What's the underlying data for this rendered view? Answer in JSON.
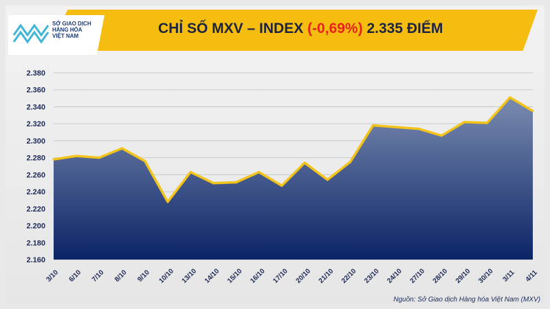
{
  "header": {
    "logo_text": [
      "SỞ GIAO DỊCH",
      "HÀNG HÓA",
      "VIỆT NAM"
    ],
    "title_main": "CHỈ SỐ MXV – INDEX",
    "title_change": "(-0,69%)",
    "title_value": "2.335 ĐIỂM"
  },
  "source": "Nguồn: Sở Giao dịch Hàng hóa Việt Nam (MXV)",
  "colors": {
    "banner": "#f5bd0f",
    "line": "#f2c318",
    "fill_top": "#7b8cb0",
    "fill_bottom": "#0b2466",
    "change": "#e8231c"
  },
  "chart_data": {
    "type": "area",
    "categories": [
      "3/10",
      "6/10",
      "7/10",
      "8/10",
      "9/10",
      "10/10",
      "13/10",
      "14/10",
      "15/10",
      "16/10",
      "17/10",
      "20/10",
      "21/10",
      "22/10",
      "23/10",
      "24/10",
      "27/10",
      "28/10",
      "29/10",
      "30/10",
      "3/11",
      "4/11"
    ],
    "values": [
      2278,
      2282,
      2280,
      2291,
      2276,
      2228,
      2263,
      2250,
      2251,
      2263,
      2247,
      2274,
      2254,
      2275,
      2318,
      2316,
      2314,
      2306,
      2322,
      2321,
      2351,
      2335
    ],
    "ylim": [
      2160,
      2380
    ],
    "yticks": [
      "2.160",
      "2.180",
      "2.200",
      "2.220",
      "2.240",
      "2.260",
      "2.280",
      "2.300",
      "2.320",
      "2.340",
      "2.360",
      "2.380"
    ],
    "grid": true
  }
}
